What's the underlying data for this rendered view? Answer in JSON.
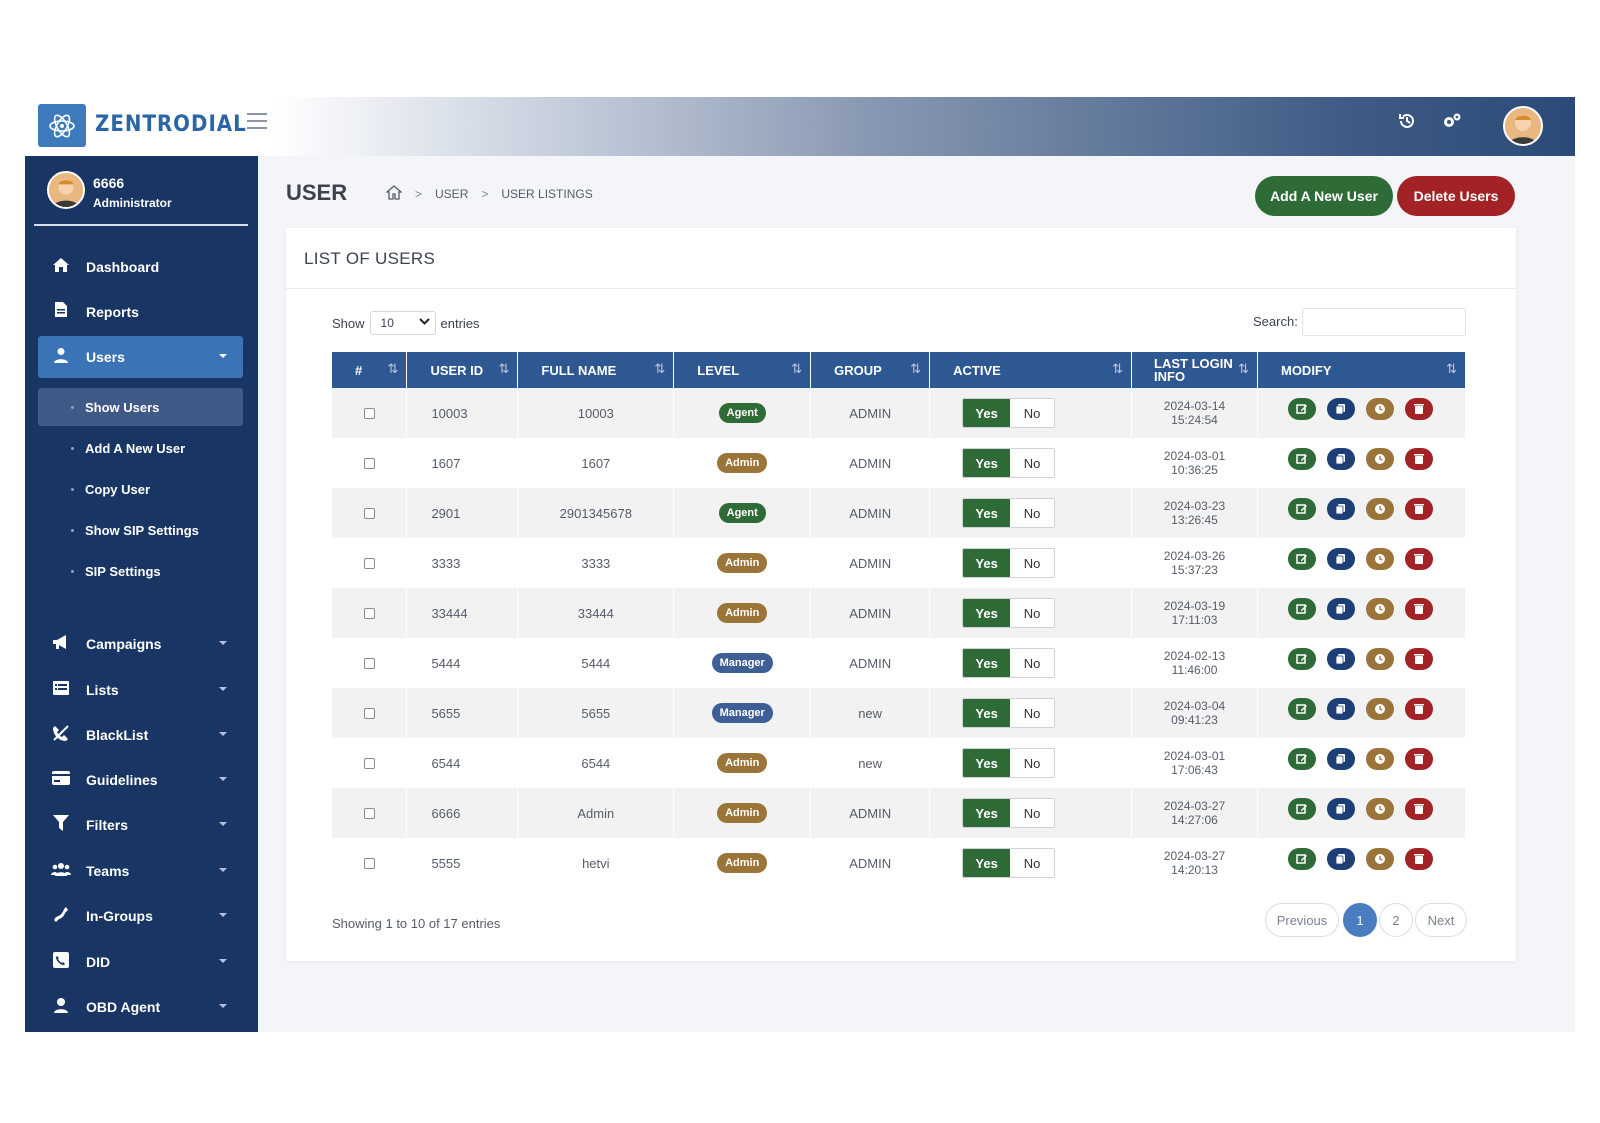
{
  "brand": {
    "name": "ZENTRODIAL"
  },
  "header": {
    "icons": [
      "history-icon",
      "settings-gear-icon",
      "user-avatar"
    ]
  },
  "sidebar": {
    "profile": {
      "name": "6666",
      "role": "Administrator"
    },
    "items": [
      {
        "label": "Dashboard",
        "icon": "home-icon"
      },
      {
        "label": "Reports",
        "icon": "document-icon"
      },
      {
        "label": "Users",
        "icon": "user-icon",
        "active": true
      },
      {
        "label": "Campaigns",
        "icon": "megaphone-icon"
      },
      {
        "label": "Lists",
        "icon": "list-icon"
      },
      {
        "label": "BlackList",
        "icon": "blocked-phone-icon"
      },
      {
        "label": "Guidelines",
        "icon": "card-icon"
      },
      {
        "label": "Filters",
        "icon": "filter-icon"
      },
      {
        "label": "Teams",
        "icon": "team-icon"
      },
      {
        "label": "In-Groups",
        "icon": "phone-icon"
      },
      {
        "label": "DID",
        "icon": "did-icon"
      },
      {
        "label": "OBD Agent",
        "icon": "agent-icon"
      }
    ],
    "sub_items": [
      {
        "label": "Show Users",
        "active": true
      },
      {
        "label": "Add A New User"
      },
      {
        "label": "Copy User"
      },
      {
        "label": "Show SIP Settings"
      },
      {
        "label": "SIP Settings"
      }
    ]
  },
  "page": {
    "title": "USER",
    "breadcrumb": [
      "USER",
      "USER LISTINGS"
    ],
    "add_button": "Add A New User",
    "delete_button": "Delete Users"
  },
  "card": {
    "title": "LIST OF USERS",
    "show_label": "Show",
    "entries_value": "10",
    "entries_label": "entries",
    "search_label": "Search:",
    "search_value": ""
  },
  "table": {
    "columns": [
      "#",
      "USER ID",
      "FULL NAME",
      "LEVEL",
      "GROUP",
      "ACTIVE",
      "LAST LOGIN INFO",
      "MODIFY"
    ],
    "toggle": {
      "yes": "Yes",
      "no": "No"
    },
    "rows": [
      {
        "user_id": "10003",
        "full_name": "10003",
        "level": "Agent",
        "group": "ADMIN",
        "login_date": "2024-03-14",
        "login_time": "15:24:54"
      },
      {
        "user_id": "1607",
        "full_name": "1607",
        "level": "Admin",
        "group": "ADMIN",
        "login_date": "2024-03-01",
        "login_time": "10:36:25"
      },
      {
        "user_id": "2901",
        "full_name": "2901345678",
        "level": "Agent",
        "group": "ADMIN",
        "login_date": "2024-03-23",
        "login_time": "13:26:45"
      },
      {
        "user_id": "3333",
        "full_name": "3333",
        "level": "Admin",
        "group": "ADMIN",
        "login_date": "2024-03-26",
        "login_time": "15:37:23"
      },
      {
        "user_id": "33444",
        "full_name": "33444",
        "level": "Admin",
        "group": "ADMIN",
        "login_date": "2024-03-19",
        "login_time": "17:11:03"
      },
      {
        "user_id": "5444",
        "full_name": "5444",
        "level": "Manager",
        "group": "ADMIN",
        "login_date": "2024-02-13",
        "login_time": "11:46:00"
      },
      {
        "user_id": "5655",
        "full_name": "5655",
        "level": "Manager",
        "group": "new",
        "login_date": "2024-03-04",
        "login_time": "09:41:23"
      },
      {
        "user_id": "6544",
        "full_name": "6544",
        "level": "Admin",
        "group": "new",
        "login_date": "2024-03-01",
        "login_time": "17:06:43"
      },
      {
        "user_id": "6666",
        "full_name": "Admin",
        "level": "Admin",
        "group": "ADMIN",
        "login_date": "2024-03-27",
        "login_time": "14:27:06"
      },
      {
        "user_id": "5555",
        "full_name": "hetvi",
        "level": "Admin",
        "group": "ADMIN",
        "login_date": "2024-03-27",
        "login_time": "14:20:13"
      }
    ],
    "level_colors": {
      "Agent": "#2e6b36",
      "Admin": "#9a7438",
      "Manager": "#3d5f96"
    },
    "modify_icons": [
      {
        "name": "edit-icon",
        "color": "#2e6b36"
      },
      {
        "name": "copy-icon",
        "color": "#1e3f75"
      },
      {
        "name": "clock-icon",
        "color": "#9a7438"
      },
      {
        "name": "trash-icon",
        "color": "#a32225"
      }
    ]
  },
  "footer": {
    "showing": "Showing 1 to 10 of 17 entries",
    "pagination": [
      "Previous",
      "1",
      "2",
      "Next"
    ],
    "current_page": "1"
  }
}
